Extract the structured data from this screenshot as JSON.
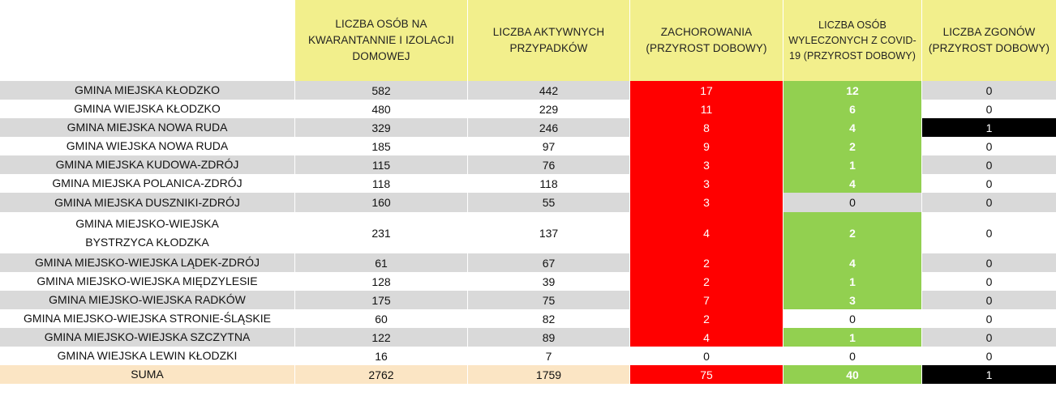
{
  "headers": {
    "name": "",
    "quarantine": "LICZBA OSÓB NA KWARANTANNIE I IZOLACJI DOMOWEJ",
    "active": "LICZBA AKTYWNYCH PRZYPADKÓW",
    "cases": "ZACHOROWANIA (PRZYROST DOBOWY)",
    "recovered": "LICZBA OSÓB WYLECZONYCH Z COVID-19 (PRZYROST DOBOWY)",
    "deaths": "LICZBA ZGONÓW (PRZYROST DOBOWY)"
  },
  "colors": {
    "header_bg": "#f2ef8c",
    "cases_bg": "#ff0000",
    "recovered_bg": "#92d050",
    "deaths_bg": "#000000",
    "stripe_bg": "#d9d9d9",
    "sum_bg": "#fbe5c4"
  },
  "rows": [
    {
      "name": "GMINA MIEJSKA KŁODZKO",
      "quarantine": "582",
      "active": "442",
      "cases": "17",
      "recovered": "12",
      "deaths": "0"
    },
    {
      "name": "GMINA WIEJSKA KŁODZKO",
      "quarantine": "480",
      "active": "229",
      "cases": "11",
      "recovered": "6",
      "deaths": "0"
    },
    {
      "name": "GMINA MIEJSKA NOWA RUDA",
      "quarantine": "329",
      "active": "246",
      "cases": "8",
      "recovered": "4",
      "deaths": "1"
    },
    {
      "name": "GMINA WIEJSKA NOWA RUDA",
      "quarantine": "185",
      "active": "97",
      "cases": "9",
      "recovered": "2",
      "deaths": "0"
    },
    {
      "name": "GMINA MIEJSKA KUDOWA-ZDRÓJ",
      "quarantine": "115",
      "active": "76",
      "cases": "3",
      "recovered": "1",
      "deaths": "0"
    },
    {
      "name": "GMINA MIEJSKA POLANICA-ZDRÓJ",
      "quarantine": "118",
      "active": "118",
      "cases": "3",
      "recovered": "4",
      "deaths": "0"
    },
    {
      "name": "GMINA MIEJSKA DUSZNIKI-ZDRÓJ",
      "quarantine": "160",
      "active": "55",
      "cases": "3",
      "recovered": "0",
      "deaths": "0"
    },
    {
      "name": "GMINA MIEJSKO-WIEJSKA BYSTRZYCA KŁODZKA",
      "quarantine": "231",
      "active": "137",
      "cases": "4",
      "recovered": "2",
      "deaths": "0"
    },
    {
      "name": "GMINA MIEJSKO-WIEJSKA LĄDEK-ZDRÓJ",
      "quarantine": "61",
      "active": "67",
      "cases": "2",
      "recovered": "4",
      "deaths": "0"
    },
    {
      "name": "GMINA MIEJSKO-WIEJSKA MIĘDZYLESIE",
      "quarantine": "128",
      "active": "39",
      "cases": "2",
      "recovered": "1",
      "deaths": "0"
    },
    {
      "name": "GMINA MIEJSKO-WIEJSKA RADKÓW",
      "quarantine": "175",
      "active": "75",
      "cases": "7",
      "recovered": "3",
      "deaths": "0"
    },
    {
      "name": "GMINA MIEJSKO-WIEJSKA STRONIE-ŚLĄSKIE",
      "quarantine": "60",
      "active": "82",
      "cases": "2",
      "recovered": "0",
      "deaths": "0"
    },
    {
      "name": "GMINA MIEJSKO-WIEJSKA SZCZYTNA",
      "quarantine": "122",
      "active": "89",
      "cases": "4",
      "recovered": "1",
      "deaths": "0"
    },
    {
      "name": "GMINA WIEJSKA LEWIN KŁODZKI",
      "quarantine": "16",
      "active": "7",
      "cases": "0",
      "recovered": "0",
      "deaths": "0"
    }
  ],
  "sum": {
    "name": "SUMA",
    "quarantine": "2762",
    "active": "1759",
    "cases": "75",
    "recovered": "40",
    "deaths": "1"
  }
}
